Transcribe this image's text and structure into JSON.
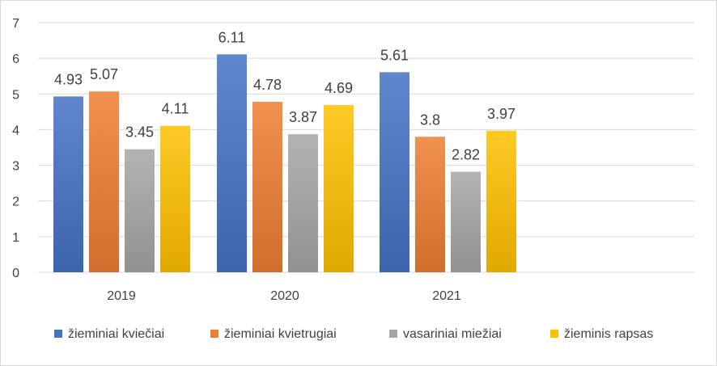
{
  "chart_data": {
    "type": "bar",
    "categories": [
      "2019",
      "2020",
      "2021"
    ],
    "series": [
      {
        "name": "žieminiai kviečiai",
        "values": [
          4.93,
          6.11,
          5.61
        ],
        "color": "#4472c4",
        "labels": [
          "4.93",
          "6.11",
          "5.61"
        ]
      },
      {
        "name": "žieminiai kvietrugiai",
        "values": [
          5.07,
          4.78,
          3.8
        ],
        "color": "#ed7d31",
        "labels": [
          "5.07",
          "4.78",
          "3.8"
        ]
      },
      {
        "name": "vasariniai miežiai",
        "values": [
          3.45,
          3.87,
          2.82
        ],
        "color": "#a5a5a5",
        "labels": [
          "3.45",
          "3.87",
          "2.82"
        ]
      },
      {
        "name": "žieminis rapsas",
        "values": [
          4.11,
          4.69,
          3.97
        ],
        "color": "#ffc000",
        "labels": [
          "4.11",
          "4.69",
          "3.97"
        ]
      }
    ],
    "ylim": [
      0,
      7
    ],
    "yticks": [
      "0",
      "1",
      "2",
      "3",
      "4",
      "5",
      "6",
      "7"
    ],
    "grid": true,
    "legend_position": "bottom",
    "title": "",
    "xlabel": "",
    "ylabel": ""
  }
}
